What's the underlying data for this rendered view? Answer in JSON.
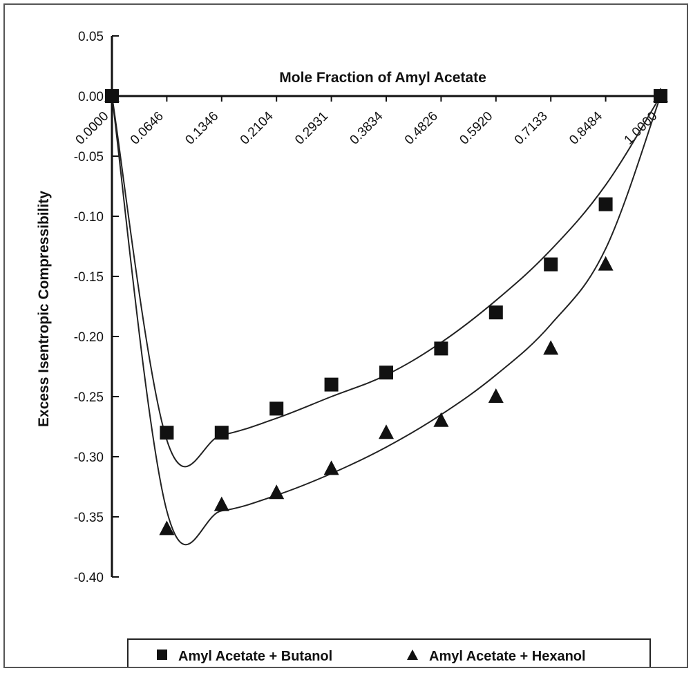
{
  "chart_data": {
    "type": "scatter",
    "title": "",
    "xlabel": "Mole Fraction of Amyl Acetate",
    "ylabel": "Excess Isentropic Compressibility",
    "categories": [
      "0.0000",
      "0.0646",
      "0.1346",
      "0.2104",
      "0.2931",
      "0.3834",
      "0.4826",
      "0.5920",
      "0.7133",
      "0.8484",
      "1.0000"
    ],
    "y_ticks": [
      "0.05",
      "0.00",
      "-0.05",
      "-0.10",
      "-0.15",
      "-0.20",
      "-0.25",
      "-0.30",
      "-0.35",
      "-0.40"
    ],
    "ylim": [
      -0.4,
      0.05
    ],
    "grid": false,
    "legend_position": "bottom",
    "series": [
      {
        "name": "Amyl Acetate + Butanol",
        "marker": "square",
        "values": [
          0.0,
          -0.28,
          -0.28,
          -0.26,
          -0.24,
          -0.23,
          -0.21,
          -0.18,
          -0.14,
          -0.09,
          0.0
        ],
        "fit": [
          0.0,
          -0.286,
          -0.282,
          -0.268,
          -0.25,
          -0.232,
          -0.205,
          -0.17,
          -0.128,
          -0.074,
          0.0
        ]
      },
      {
        "name": "Amyl Acetate + Hexanol",
        "marker": "triangle",
        "values": [
          0.0,
          -0.36,
          -0.34,
          -0.33,
          -0.31,
          -0.28,
          -0.27,
          -0.25,
          -0.21,
          -0.14,
          0.0
        ],
        "fit": [
          0.0,
          -0.345,
          -0.345,
          -0.332,
          -0.314,
          -0.292,
          -0.265,
          -0.232,
          -0.19,
          -0.127,
          0.0
        ]
      }
    ]
  }
}
